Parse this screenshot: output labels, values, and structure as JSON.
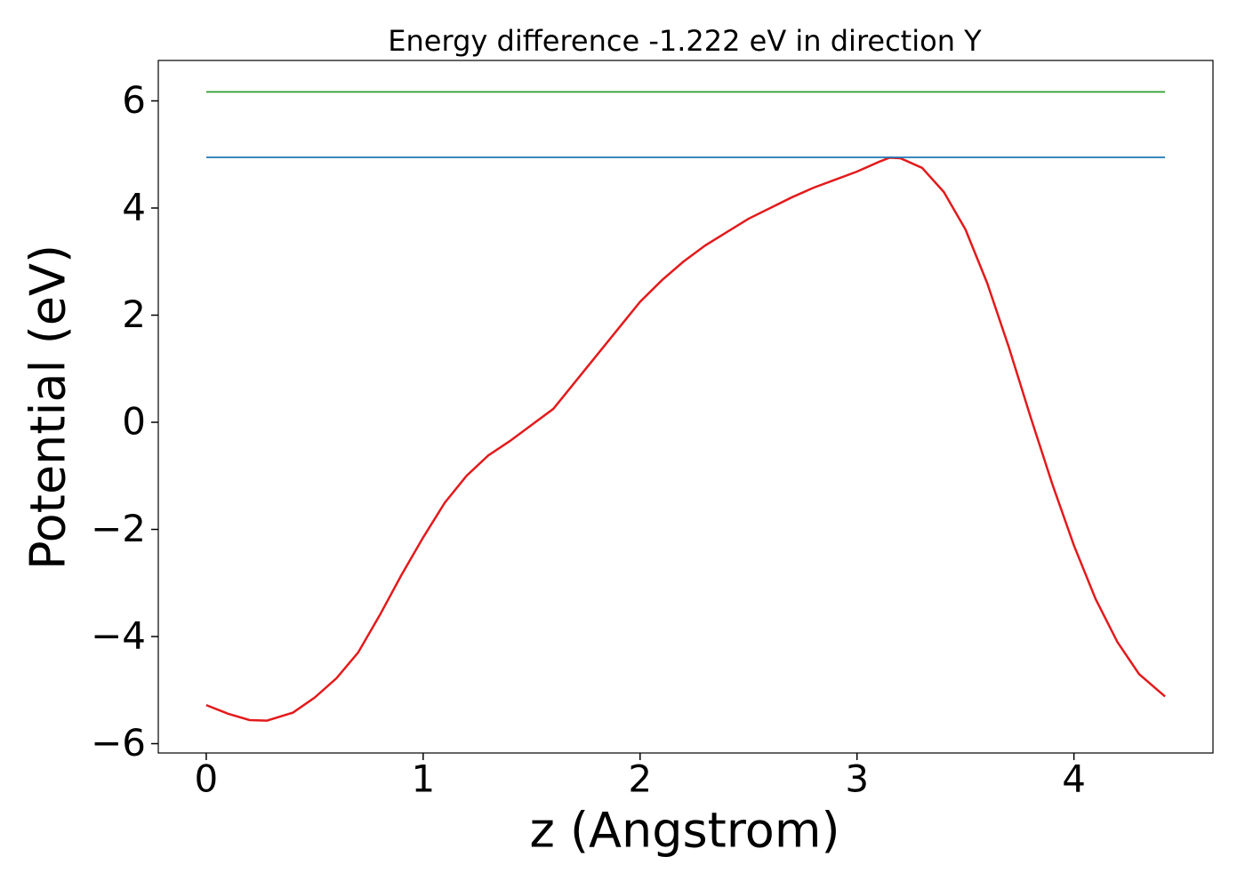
{
  "chart_data": {
    "type": "line",
    "title": "Energy difference -1.222 eV in direction Y",
    "xlabel": "z (Angstrom)",
    "ylabel": "Potential (eV)",
    "xlim": [
      -0.221,
      4.641
    ],
    "ylim": [
      -6.174,
      6.755
    ],
    "xticks": [
      0,
      1,
      2,
      3,
      4
    ],
    "yticks": [
      {
        "value": -6,
        "label": "−6"
      },
      {
        "value": -4,
        "label": "−4"
      },
      {
        "value": -2,
        "label": "−2"
      },
      0,
      2,
      4,
      6
    ],
    "grid": false,
    "series": [
      {
        "color": "#e31a1c",
        "x": [
          0,
          0.1,
          0.2,
          0.28,
          0.4,
          0.5,
          0.6,
          0.7,
          0.8,
          0.9,
          1.0,
          1.1,
          1.2,
          1.3,
          1.4,
          1.5,
          1.6,
          1.7,
          1.8,
          1.9,
          2.0,
          2.1,
          2.2,
          2.3,
          2.4,
          2.5,
          2.6,
          2.7,
          2.8,
          2.9,
          3.0,
          3.1,
          3.15,
          3.2,
          3.3,
          3.4,
          3.5,
          3.6,
          3.7,
          3.8,
          3.9,
          4.0,
          4.1,
          4.2,
          4.3,
          4.42
        ],
        "values": [
          -5.28,
          -5.44,
          -5.56,
          -5.57,
          -5.42,
          -5.14,
          -4.78,
          -4.3,
          -3.6,
          -2.85,
          -2.15,
          -1.5,
          -1.0,
          -0.62,
          -0.35,
          -0.05,
          0.25,
          0.75,
          1.25,
          1.75,
          2.25,
          2.65,
          3.0,
          3.3,
          3.55,
          3.8,
          4.0,
          4.2,
          4.38,
          4.53,
          4.68,
          4.86,
          4.94,
          4.93,
          4.75,
          4.3,
          3.6,
          2.6,
          1.4,
          0.1,
          -1.15,
          -2.3,
          -3.3,
          -4.1,
          -4.7,
          -5.12
        ]
      },
      {
        "color": "#1f77b4",
        "x": [
          0,
          4.42
        ],
        "values": [
          4.946,
          4.946
        ]
      },
      {
        "color": "#2ca02c",
        "x": [
          0,
          4.42
        ],
        "values": [
          6.168,
          6.168
        ]
      }
    ]
  }
}
